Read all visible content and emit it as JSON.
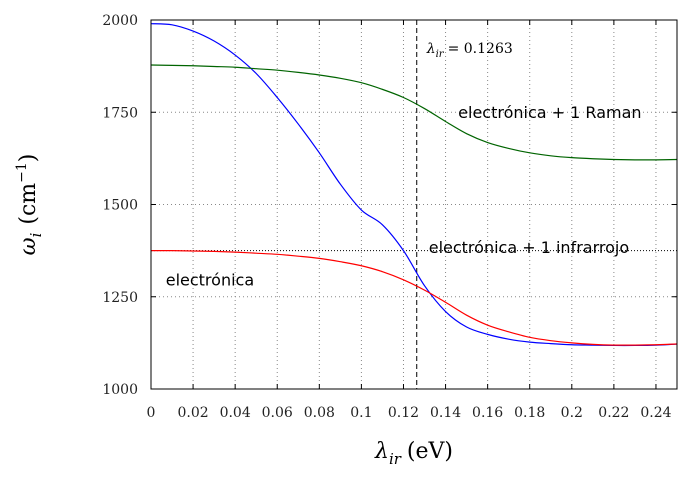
{
  "chart_data": {
    "type": "line",
    "xlabel_symbol": "λ",
    "xlabel_sub": "ir",
    "xlabel_unit": "(eV)",
    "ylabel_symbol": "ω",
    "ylabel_sub": "i",
    "ylabel_unit_open": "(cm",
    "ylabel_unit_exp": "−1",
    "ylabel_unit_close": ")",
    "xlim": [
      0,
      0.25
    ],
    "ylim": [
      1000,
      2000
    ],
    "x_ticks": [
      "0",
      "0.02",
      "0.04",
      "0.06",
      "0.08",
      "0.1",
      "0.12",
      "0.14",
      "0.16",
      "0.18",
      "0.2",
      "0.22",
      "0.24"
    ],
    "x_tick_values": [
      0,
      0.02,
      0.04,
      0.06,
      0.08,
      0.1,
      0.12,
      0.14,
      0.16,
      0.18,
      0.2,
      0.22,
      0.24
    ],
    "y_ticks": [
      "1000",
      "1250",
      "1500",
      "1750",
      "2000"
    ],
    "y_tick_values": [
      1000,
      1250,
      1500,
      1750,
      2000
    ],
    "grid": true,
    "vline": {
      "x": 0.1263,
      "label_symbol": "λ",
      "label_sub": "ir",
      "label_value": "= 0.1263"
    },
    "hline": {
      "y": 1375
    },
    "series": [
      {
        "color": "#0000ff",
        "x": [
          0,
          0.01,
          0.02,
          0.03,
          0.04,
          0.05,
          0.06,
          0.07,
          0.08,
          0.09,
          0.1,
          0.11,
          0.12,
          0.13,
          0.14,
          0.15,
          0.16,
          0.17,
          0.18,
          0.19,
          0.2,
          0.21,
          0.22,
          0.23,
          0.24,
          0.25
        ],
        "y": [
          1990,
          1987,
          1970,
          1943,
          1905,
          1855,
          1790,
          1718,
          1640,
          1555,
          1485,
          1445,
          1375,
          1280,
          1210,
          1168,
          1148,
          1135,
          1127,
          1123,
          1120,
          1119,
          1118,
          1118,
          1119,
          1122
        ]
      },
      {
        "color": "#006400",
        "x": [
          0,
          0.01,
          0.02,
          0.03,
          0.04,
          0.05,
          0.06,
          0.07,
          0.08,
          0.09,
          0.1,
          0.11,
          0.12,
          0.13,
          0.14,
          0.15,
          0.16,
          0.17,
          0.18,
          0.19,
          0.2,
          0.21,
          0.22,
          0.23,
          0.24,
          0.25
        ],
        "y": [
          1878,
          1877,
          1876,
          1874,
          1872,
          1868,
          1864,
          1858,
          1851,
          1842,
          1830,
          1812,
          1790,
          1760,
          1725,
          1692,
          1668,
          1652,
          1640,
          1632,
          1627,
          1624,
          1622,
          1621,
          1621,
          1622
        ]
      },
      {
        "color": "#ff0000",
        "x": [
          0,
          0.01,
          0.02,
          0.03,
          0.04,
          0.05,
          0.06,
          0.07,
          0.08,
          0.09,
          0.1,
          0.11,
          0.12,
          0.13,
          0.14,
          0.15,
          0.16,
          0.17,
          0.18,
          0.19,
          0.2,
          0.21,
          0.22,
          0.23,
          0.24,
          0.25
        ],
        "y": [
          1375,
          1375,
          1374,
          1373,
          1371,
          1368,
          1365,
          1360,
          1354,
          1345,
          1334,
          1318,
          1296,
          1268,
          1235,
          1200,
          1173,
          1155,
          1140,
          1131,
          1125,
          1121,
          1119,
          1119,
          1120,
          1122
        ]
      }
    ],
    "annotations": [
      {
        "text": "electrónica + 1 Raman",
        "x": 0.146,
        "y": 1735
      },
      {
        "text": "electrónica + 1 infrarrojo",
        "x": 0.132,
        "y": 1368
      },
      {
        "text": "electrónica",
        "x": 0.007,
        "y": 1280
      }
    ]
  }
}
